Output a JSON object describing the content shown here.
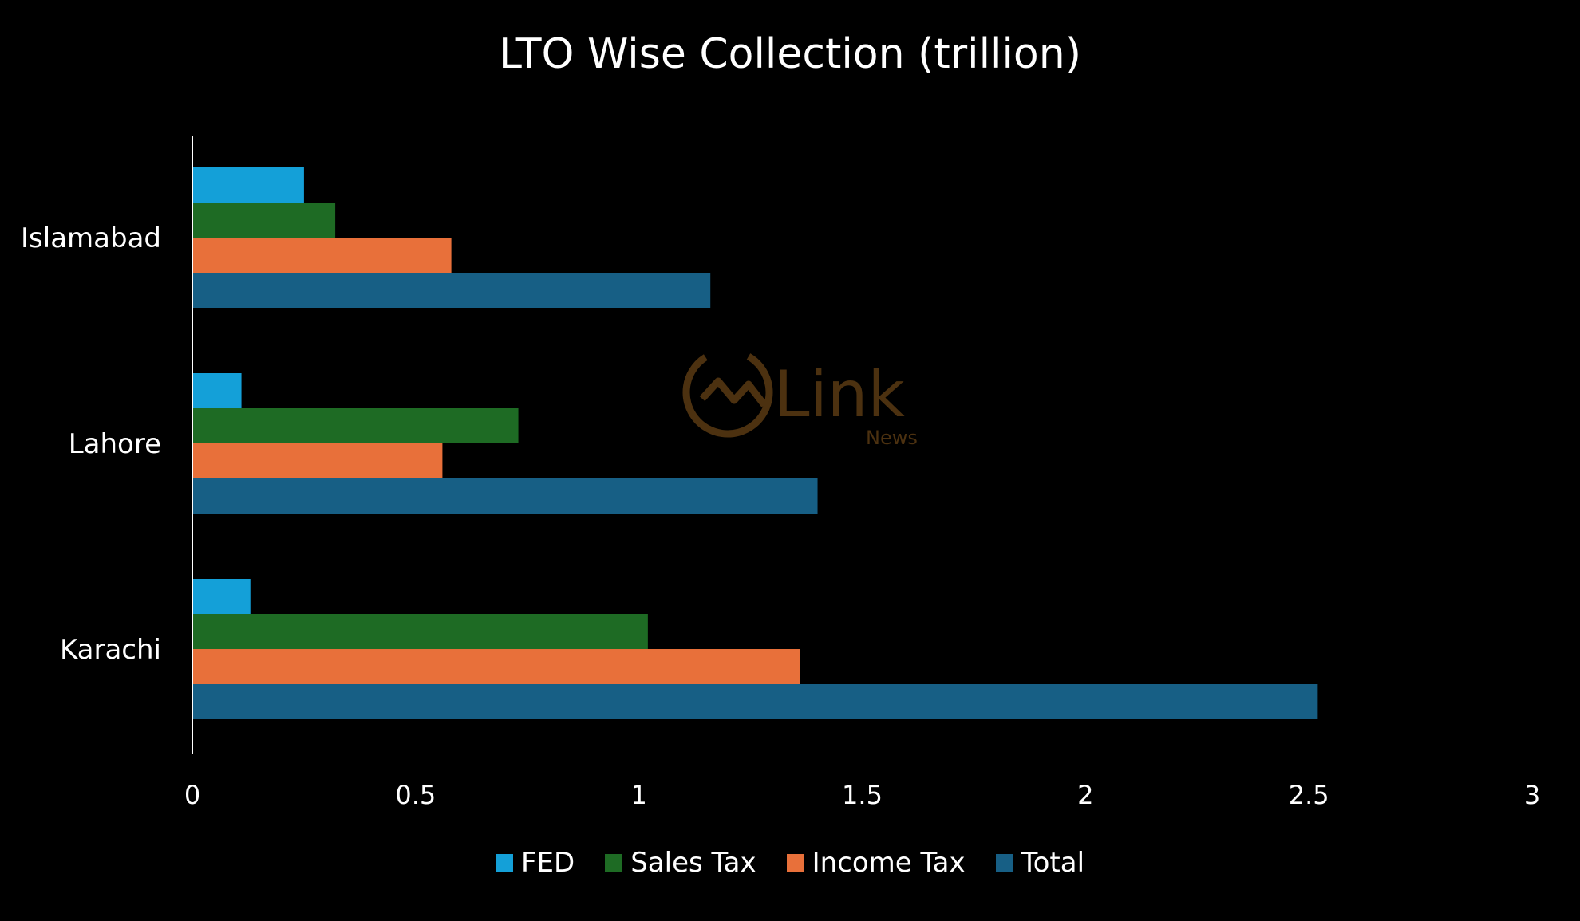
{
  "chart_data": {
    "type": "bar",
    "orientation": "horizontal",
    "title": "LTO Wise Collection (trillion)",
    "categories": [
      "Islamabad",
      "Lahore",
      "Karachi"
    ],
    "series": [
      {
        "name": "FED",
        "color": "#14A0D8",
        "values": [
          0.25,
          0.11,
          0.13
        ]
      },
      {
        "name": "Sales Tax",
        "color": "#1E6B24",
        "values": [
          0.32,
          0.73,
          1.02
        ]
      },
      {
        "name": "Income Tax",
        "color": "#E8703A",
        "values": [
          0.58,
          0.56,
          1.36
        ]
      },
      {
        "name": "Total",
        "color": "#175F85",
        "values": [
          1.16,
          1.4,
          2.52
        ]
      }
    ],
    "xlim": [
      0,
      3
    ],
    "x_ticks": [
      "0",
      "0.5",
      "1",
      "1.5",
      "2",
      "2.5",
      "3"
    ],
    "grid": false,
    "legend_position": "bottom"
  },
  "watermark": {
    "logo_text": "Link",
    "sub_text": "News",
    "color": "#8B5A1E"
  }
}
